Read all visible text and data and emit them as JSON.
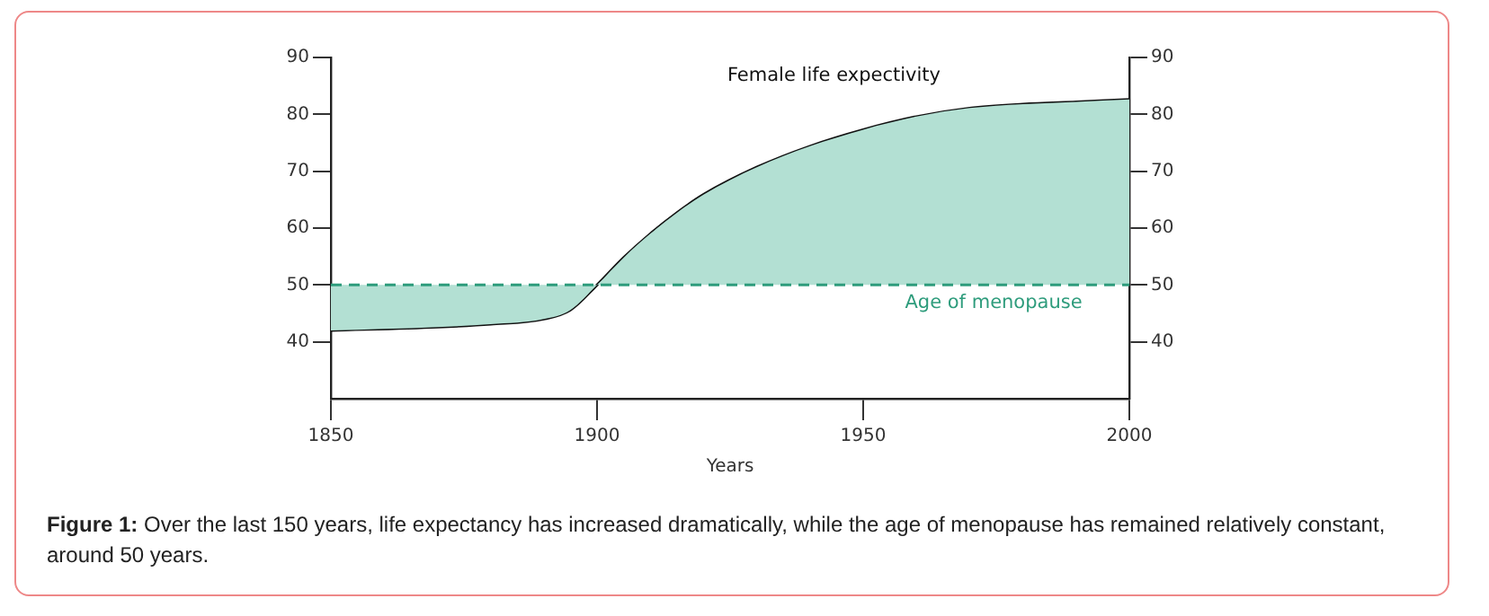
{
  "chart_data": {
    "type": "line",
    "xlabel": "Years",
    "x": [
      1850,
      1870,
      1880,
      1890,
      1895,
      1900,
      1905,
      1910,
      1915,
      1920,
      1930,
      1940,
      1950,
      1960,
      1970,
      1980,
      1990,
      2000
    ],
    "series": [
      {
        "name": "Female life expectivity",
        "color": "#111111",
        "values": [
          42.0,
          42.6,
          43.1,
          44.0,
          45.6,
          50,
          54.8,
          59,
          62.7,
          65.9,
          70.7,
          74.4,
          77.3,
          79.6,
          81.1,
          81.8,
          82.2,
          82.6
        ],
        "lower": [
          50,
          50,
          50,
          50,
          50,
          50,
          50,
          50,
          50,
          50,
          50,
          50,
          50,
          50,
          50,
          50,
          50,
          50
        ],
        "upper": [
          42.0,
          42.6,
          43.1,
          44.0,
          45.6,
          50,
          54.8,
          59,
          62.7,
          65.9,
          70.7,
          74.4,
          77.3,
          79.6,
          81.1,
          81.8,
          82.2,
          82.6
        ]
      }
    ],
    "xlim": [
      1850,
      2000
    ],
    "xticks": [
      1850,
      1900,
      1950,
      2000
    ],
    "ylim": [
      30,
      90
    ],
    "yticks": [
      40,
      50,
      60,
      70,
      80,
      90
    ],
    "y2lim": [
      30,
      90
    ],
    "y2ticks": [
      40,
      50,
      60,
      70,
      80,
      90
    ],
    "ref_lines": [
      {
        "axis": "y",
        "value": 50,
        "label": "Age of menopause",
        "color": "#2e9c7c",
        "line_style": "dashed"
      }
    ],
    "grid": false,
    "legend": false,
    "annotations": [
      "Figure 1: Over the last 150 years, life expectancy has increased dramatically, while the age of menopause has remained relatively constant, around 50 years."
    ]
  }
}
